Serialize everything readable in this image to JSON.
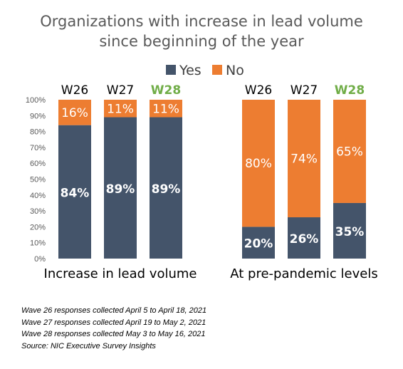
{
  "chart_data": {
    "type": "bar",
    "stacked": true,
    "title_lines": [
      "Organizations with increase in lead volume",
      "since beginning of the year"
    ],
    "legend": [
      {
        "name": "Yes",
        "color": "#44546a"
      },
      {
        "name": "No",
        "color": "#ed7d31"
      }
    ],
    "legend_position": "top-center",
    "y_axis": {
      "min": 0,
      "max": 100,
      "tick_labels": [
        "0%",
        "10%",
        "20%",
        "30%",
        "40%",
        "50%",
        "60%",
        "70%",
        "80%",
        "90%",
        "100%"
      ]
    },
    "grid": false,
    "groups": [
      {
        "label": "Increase in lead volume",
        "categories": [
          "W26",
          "W27",
          "W28"
        ],
        "category_colors": [
          "#000000",
          "#000000",
          "#70ad47"
        ],
        "yes": [
          84,
          89,
          89
        ],
        "no": [
          16,
          11,
          11
        ],
        "yes_labels": [
          "84%",
          "89%",
          "89%"
        ],
        "no_labels": [
          "16%",
          "11%",
          "11%"
        ]
      },
      {
        "label": "At pre-pandemic levels",
        "categories": [
          "W26",
          "W27",
          "W28"
        ],
        "category_colors": [
          "#000000",
          "#000000",
          "#70ad47"
        ],
        "yes": [
          20,
          26,
          35
        ],
        "no": [
          80,
          74,
          65
        ],
        "yes_labels": [
          "20%",
          "26%",
          "35%"
        ],
        "no_labels": [
          "80%",
          "74%",
          "65%"
        ]
      }
    ]
  },
  "notes": [
    "Wave 26 responses collected  April 5 to April 18, 2021",
    "Wave 27 responses collected  April 19 to May 2, 2021",
    "Wave 28 responses collected  May 3 to May 16, 2021",
    "Source: NIC Executive Survey Insights"
  ]
}
